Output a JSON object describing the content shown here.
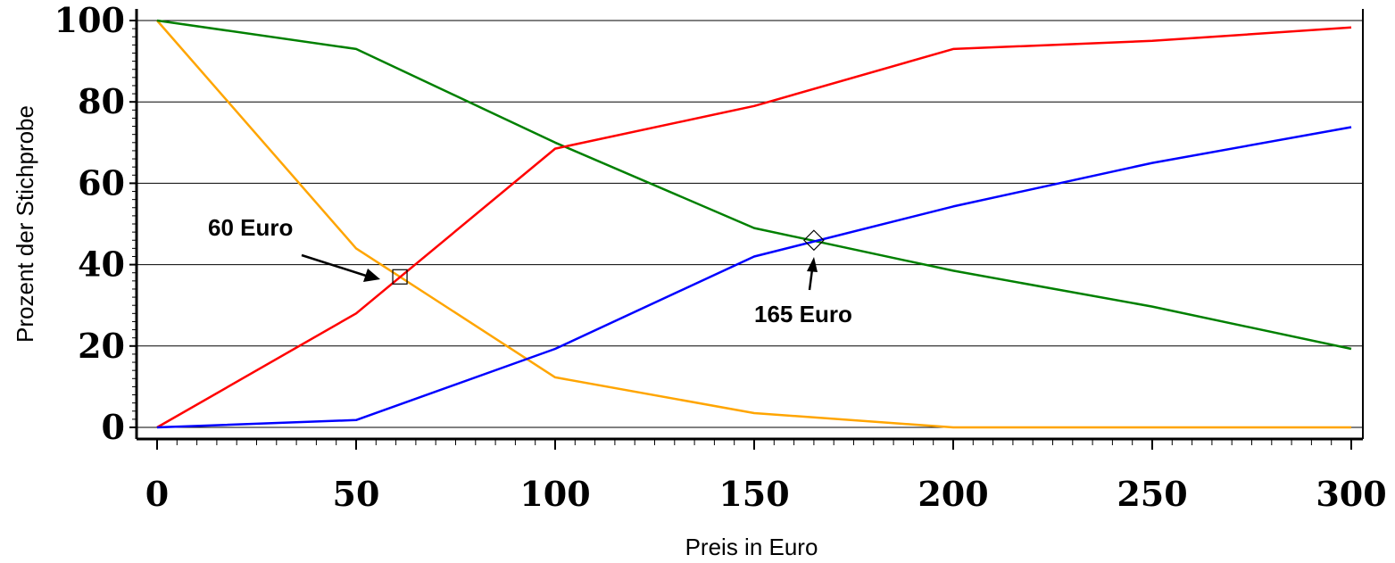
{
  "chart_data": {
    "type": "line",
    "title": "",
    "xlabel": "Preis in Euro",
    "ylabel": "Prozent der Stichprobe",
    "xlim": [
      0,
      300
    ],
    "ylim": [
      0,
      100
    ],
    "x_ticks": [
      0,
      50,
      100,
      150,
      200,
      250,
      300
    ],
    "y_ticks": [
      0,
      20,
      40,
      60,
      80,
      100
    ],
    "grid": "horizontal",
    "x": [
      0,
      50,
      100,
      150,
      200,
      250,
      300
    ],
    "series": [
      {
        "color": "#ffa500",
        "values": [
          100,
          44,
          12.3,
          3.5,
          0,
          0,
          0
        ]
      },
      {
        "color": "#008000",
        "values": [
          100,
          93,
          70,
          49,
          38.5,
          29.7,
          19.3
        ]
      },
      {
        "color": "#ff0000",
        "values": [
          0,
          28,
          68.5,
          79,
          93,
          95,
          98.3
        ]
      },
      {
        "color": "#0000ff",
        "values": [
          0,
          1.8,
          19.3,
          42,
          54.3,
          65,
          73.8
        ]
      }
    ],
    "annotations": [
      {
        "text": "60 Euro",
        "x": 61,
        "y": 37,
        "marker": "square"
      },
      {
        "text": "165 Euro",
        "x": 165,
        "y": 46,
        "marker": "diamond"
      }
    ]
  }
}
